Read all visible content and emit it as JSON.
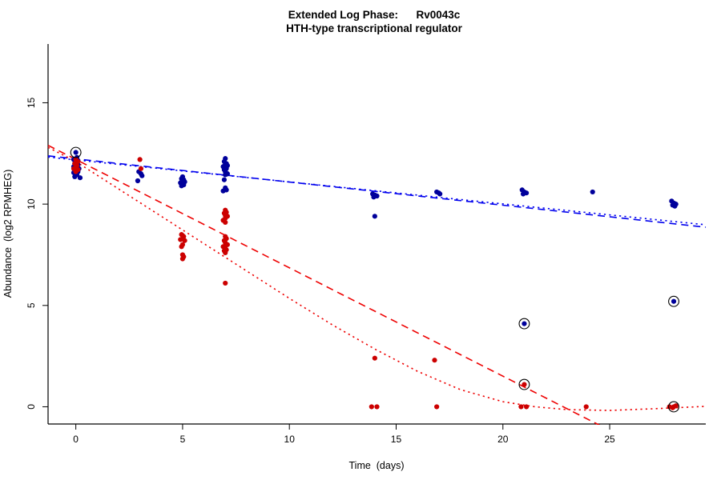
{
  "chart_data": {
    "type": "scatter",
    "title": "Extended Log Phase:      Rv0043c",
    "subtitle": "HTH-type transcriptional regulator",
    "xlabel": "Time  (days)",
    "ylabel": "Abundance  (log2 RPMHEG)",
    "x_ticks": [
      0,
      5,
      10,
      15,
      20,
      25
    ],
    "y_ticks": [
      0,
      5,
      10,
      15
    ],
    "xlim": [
      -1.3,
      29.5
    ],
    "ylim": [
      -0.85,
      17.9
    ],
    "grid": "off",
    "legend": "none",
    "colors": {
      "blue_points": "#00009b",
      "red_points": "#cc0000",
      "blue_line": "#0000ee",
      "red_line": "#ee0000",
      "outlier_ring": "#000000"
    },
    "series": [
      {
        "name": "blue-condition",
        "color": "#00009b",
        "points": [
          [
            0.05,
            12.3
          ],
          [
            -0.1,
            12.2
          ],
          [
            0.1,
            12.15
          ],
          [
            0,
            12.1
          ],
          [
            -0.05,
            12.0
          ],
          [
            0.1,
            11.95
          ],
          [
            0,
            11.9
          ],
          [
            -0.1,
            11.85
          ],
          [
            0.05,
            11.8
          ],
          [
            0.15,
            11.75
          ],
          [
            -0.05,
            11.7
          ],
          [
            0,
            11.65
          ],
          [
            0.1,
            11.6
          ],
          [
            -0.1,
            11.55
          ],
          [
            0,
            11.5
          ],
          [
            0.05,
            11.45
          ],
          [
            -0.05,
            11.35
          ],
          [
            0.2,
            11.3
          ],
          [
            2.95,
            11.6
          ],
          [
            3.05,
            11.5
          ],
          [
            3.1,
            11.4
          ],
          [
            2.9,
            11.15
          ],
          [
            5,
            11.35
          ],
          [
            4.95,
            11.25
          ],
          [
            5.05,
            11.2
          ],
          [
            5,
            11.15
          ],
          [
            5.1,
            11.1
          ],
          [
            4.9,
            11.05
          ],
          [
            5,
            11.0
          ],
          [
            5.05,
            10.95
          ],
          [
            4.95,
            10.9
          ],
          [
            7,
            12.25
          ],
          [
            6.95,
            12.1
          ],
          [
            7.05,
            12.0
          ],
          [
            7,
            11.95
          ],
          [
            7.1,
            11.9
          ],
          [
            6.9,
            11.85
          ],
          [
            7,
            11.8
          ],
          [
            7.05,
            11.75
          ],
          [
            6.95,
            11.7
          ],
          [
            7,
            11.6
          ],
          [
            7.1,
            11.5
          ],
          [
            7,
            11.45
          ],
          [
            6.95,
            11.2
          ],
          [
            7,
            10.8
          ],
          [
            7.05,
            10.7
          ],
          [
            6.9,
            10.65
          ],
          [
            13.9,
            10.5
          ],
          [
            14,
            10.45
          ],
          [
            14.1,
            10.4
          ],
          [
            13.95,
            10.35
          ],
          [
            14,
            9.4
          ],
          [
            16.9,
            10.6
          ],
          [
            17,
            10.55
          ],
          [
            17.05,
            10.5
          ],
          [
            20.9,
            10.7
          ],
          [
            21,
            10.6
          ],
          [
            21.1,
            10.55
          ],
          [
            20.95,
            10.5
          ],
          [
            24.2,
            10.6
          ],
          [
            27.9,
            10.15
          ],
          [
            28,
            10.05
          ],
          [
            28.1,
            10.0
          ],
          [
            27.95,
            9.95
          ],
          [
            28.05,
            9.9
          ]
        ]
      },
      {
        "name": "red-condition",
        "color": "#cc0000",
        "points": [
          [
            0,
            12.2
          ],
          [
            0.1,
            12.1
          ],
          [
            -0.05,
            12.0
          ],
          [
            0.05,
            11.9
          ],
          [
            0,
            11.8
          ],
          [
            -0.1,
            11.75
          ],
          [
            0.1,
            11.7
          ],
          [
            0,
            11.6
          ],
          [
            3,
            12.2
          ],
          [
            3.05,
            11.75
          ],
          [
            4.95,
            8.5
          ],
          [
            5,
            8.45
          ],
          [
            5.05,
            8.4
          ],
          [
            5,
            8.3
          ],
          [
            4.9,
            8.25
          ],
          [
            5.1,
            8.2
          ],
          [
            5,
            8.0
          ],
          [
            4.95,
            7.9
          ],
          [
            5,
            7.5
          ],
          [
            5.05,
            7.4
          ],
          [
            5,
            7.3
          ],
          [
            7,
            9.7
          ],
          [
            7.05,
            9.6
          ],
          [
            6.95,
            9.55
          ],
          [
            7,
            9.45
          ],
          [
            7.1,
            9.4
          ],
          [
            7,
            9.3
          ],
          [
            6.9,
            9.2
          ],
          [
            7,
            9.1
          ],
          [
            7,
            8.4
          ],
          [
            7.05,
            8.3
          ],
          [
            6.95,
            8.2
          ],
          [
            7,
            8.1
          ],
          [
            7.1,
            8.0
          ],
          [
            7,
            7.95
          ],
          [
            6.9,
            7.9
          ],
          [
            7,
            7.8
          ],
          [
            7.05,
            7.75
          ],
          [
            6.95,
            7.7
          ],
          [
            7,
            7.6
          ],
          [
            7,
            6.1
          ],
          [
            14,
            2.4
          ],
          [
            13.85,
            0.0
          ],
          [
            14.1,
            0.0
          ],
          [
            16.8,
            2.3
          ],
          [
            16.9,
            0.0
          ],
          [
            20.85,
            0.0
          ],
          [
            21.1,
            0.0
          ],
          [
            23.9,
            0.0
          ],
          [
            27.8,
            0.0
          ],
          [
            27.95,
            -0.05
          ],
          [
            28.1,
            0.05
          ]
        ]
      }
    ],
    "circled_points": [
      {
        "x": 0,
        "y": 12.55,
        "color": "#00009b"
      },
      {
        "x": 21,
        "y": 4.1,
        "color": "#00009b"
      },
      {
        "x": 28,
        "y": 5.2,
        "color": "#00009b"
      },
      {
        "x": 21,
        "y": 1.1,
        "color": "#cc0000"
      },
      {
        "x": 28,
        "y": 0.0,
        "color": "#cc0000"
      }
    ],
    "trend_lines": [
      {
        "name": "blue-dotted-fit",
        "color": "#0000ee",
        "style": "dotted",
        "points": [
          [
            -1.3,
            12.32
          ],
          [
            29.5,
            8.98
          ]
        ]
      },
      {
        "name": "blue-dashed-fit",
        "color": "#0000ee",
        "style": "dashed",
        "points": [
          [
            -1.3,
            12.38
          ],
          [
            29.5,
            8.86
          ]
        ]
      },
      {
        "name": "red-dashed-fit",
        "color": "#ee0000",
        "style": "dashed",
        "points": [
          [
            -1.3,
            12.9
          ],
          [
            24.6,
            -0.95
          ]
        ]
      },
      {
        "name": "red-dotted-fit",
        "color": "#ee0000",
        "style": "dotted",
        "points": [
          [
            -1.3,
            12.8
          ],
          [
            0,
            12.1
          ],
          [
            2,
            10.75
          ],
          [
            4,
            9.4
          ],
          [
            6,
            8.05
          ],
          [
            8,
            6.7
          ],
          [
            10,
            5.35
          ],
          [
            12,
            4.05
          ],
          [
            14,
            2.85
          ],
          [
            16,
            1.75
          ],
          [
            18,
            0.85
          ],
          [
            20,
            0.25
          ],
          [
            21.5,
            0.0
          ],
          [
            23,
            -0.14
          ],
          [
            25,
            -0.18
          ],
          [
            27,
            -0.1
          ],
          [
            29.5,
            0.02
          ]
        ]
      }
    ]
  }
}
